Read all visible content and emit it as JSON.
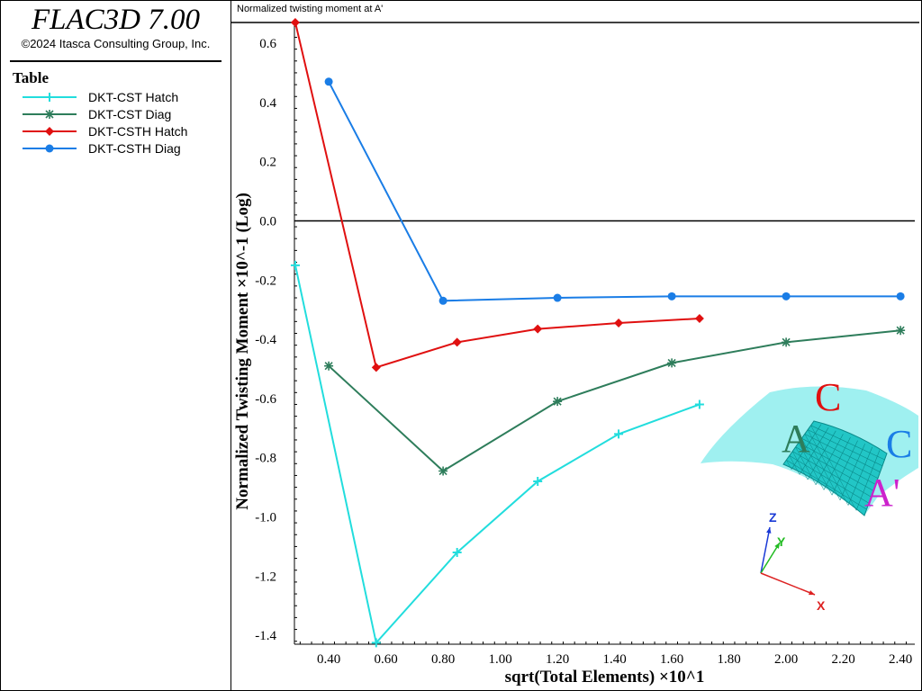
{
  "app": {
    "title": "FLAC3D 7.00",
    "copyright": "©2024 Itasca Consulting Group, Inc."
  },
  "legend": {
    "heading": "Table",
    "items": [
      {
        "label": "DKT-CST Hatch",
        "color": "#22dddd",
        "marker": "plus"
      },
      {
        "label": "DKT-CST Diag",
        "color": "#2e7d5b",
        "marker": "asterisk"
      },
      {
        "label": "DKT-CSTH Hatch",
        "color": "#e01010",
        "marker": "diamond"
      },
      {
        "label": "DKT-CSTH Diag",
        "color": "#1a7de6",
        "marker": "circle"
      }
    ]
  },
  "plot": {
    "title": "Normalized twisting moment at A'"
  },
  "chart_data": {
    "type": "line",
    "xlabel": "sqrt(Total Elements) ×10^1",
    "ylabel": "Normalized Twisting Moment ×10^-1 (Log)",
    "xlim": [
      0.28,
      2.45
    ],
    "ylim": [
      -1.43,
      0.67
    ],
    "xticks": [
      "0.40",
      "0.60",
      "0.80",
      "1.00",
      "1.20",
      "1.40",
      "1.60",
      "1.80",
      "2.00",
      "2.20",
      "2.40"
    ],
    "yticks": [
      "0.6",
      "0.4",
      "0.2",
      "0.0",
      "-0.2",
      "-0.4",
      "-0.6",
      "-0.8",
      "-1.0",
      "-1.2",
      "-1.4"
    ],
    "series": [
      {
        "name": "DKT-CST Hatch",
        "color": "#22dddd",
        "marker": "plus",
        "x": [
          0.283,
          0.566,
          0.849,
          1.131,
          1.414,
          1.697
        ],
        "y": [
          -0.15,
          -1.425,
          -1.12,
          -0.88,
          -0.72,
          -0.62
        ]
      },
      {
        "name": "DKT-CST Diag",
        "color": "#2e7d5b",
        "marker": "asterisk",
        "x": [
          0.4,
          0.8,
          1.2,
          1.6,
          2.0,
          2.4
        ],
        "y": [
          -0.49,
          -0.845,
          -0.61,
          -0.48,
          -0.41,
          -0.37
        ]
      },
      {
        "name": "DKT-CSTH Hatch",
        "color": "#e01010",
        "marker": "diamond",
        "x": [
          0.283,
          0.566,
          0.849,
          1.131,
          1.414,
          1.697
        ],
        "y": [
          0.67,
          -0.495,
          -0.41,
          -0.365,
          -0.345,
          -0.33
        ]
      },
      {
        "name": "DKT-CSTH Diag",
        "color": "#1a7de6",
        "marker": "circle",
        "x": [
          0.4,
          0.8,
          1.2,
          1.6,
          2.0,
          2.4
        ],
        "y": [
          0.47,
          -0.27,
          -0.26,
          -0.255,
          -0.255,
          -0.255
        ]
      }
    ]
  },
  "inset": {
    "labels": [
      {
        "text": "C",
        "color": "#e01010"
      },
      {
        "text": "A",
        "color": "#2e7d5b"
      },
      {
        "text": "C",
        "color": "#1a7de6"
      },
      {
        "text": "A'",
        "color": "#cc22cc"
      }
    ],
    "axes": [
      {
        "text": "Z",
        "color": "#1a3ad6"
      },
      {
        "text": "Y",
        "color": "#22bb22"
      },
      {
        "text": "X",
        "color": "#dd2222"
      }
    ]
  }
}
